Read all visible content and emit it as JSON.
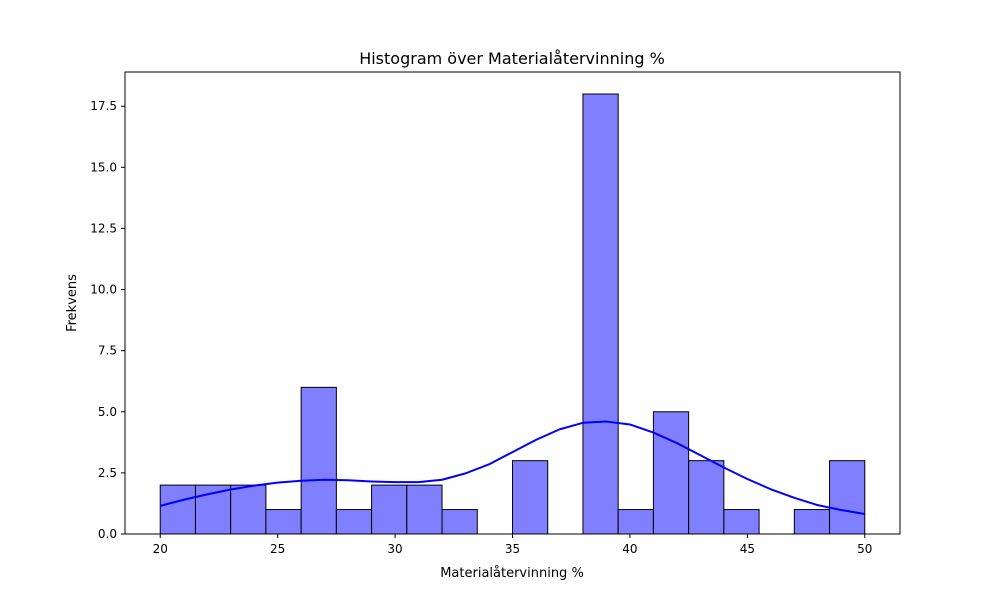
{
  "chart_data": {
    "type": "bar",
    "title": "Histogram över Materialåtervinning %",
    "xlabel": "Materialåtervinning %",
    "ylabel": "Frekvens",
    "xlim": [
      18.5,
      51.5
    ],
    "ylim": [
      0,
      18.9
    ],
    "xticks": [
      20,
      25,
      30,
      35,
      40,
      45,
      50
    ],
    "xtick_labels": [
      "20",
      "25",
      "30",
      "35",
      "40",
      "45",
      "50"
    ],
    "yticks": [
      0,
      2.5,
      5,
      7.5,
      10,
      12.5,
      15,
      17.5
    ],
    "ytick_labels": [
      "0.0",
      "2.5",
      "5.0",
      "7.5",
      "10.0",
      "12.5",
      "15.0",
      "17.5"
    ],
    "grid": false,
    "legend": "none",
    "bin_range": [
      20,
      50
    ],
    "bin_count": 20,
    "counts": [
      2,
      2,
      2,
      1,
      6,
      1,
      2,
      2,
      1,
      0,
      3,
      0,
      18,
      1,
      5,
      3,
      1,
      0,
      1,
      3
    ],
    "kde": {
      "x": [
        20,
        21,
        22,
        23,
        24,
        25,
        26,
        27,
        28,
        29,
        30,
        31,
        32,
        33,
        34,
        35,
        36,
        37,
        38,
        39,
        40,
        41,
        42,
        43,
        44,
        45,
        46,
        47,
        48,
        49,
        50
      ],
      "y": [
        1.15,
        1.4,
        1.62,
        1.82,
        1.98,
        2.1,
        2.18,
        2.22,
        2.2,
        2.15,
        2.12,
        2.12,
        2.22,
        2.48,
        2.85,
        3.35,
        3.85,
        4.28,
        4.55,
        4.6,
        4.48,
        4.15,
        3.72,
        3.22,
        2.72,
        2.25,
        1.83,
        1.48,
        1.18,
        0.98,
        0.82
      ]
    },
    "colors": {
      "bar_fill": "#8080ff",
      "bar_edge": "#000000",
      "kde_line": "#0000ff"
    }
  }
}
